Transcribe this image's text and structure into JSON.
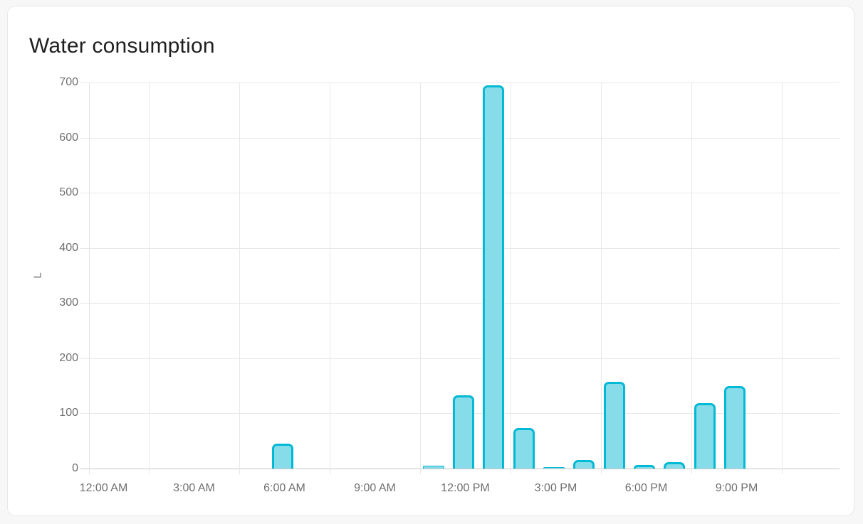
{
  "card": {
    "title": "Water consumption"
  },
  "chart_data": {
    "type": "bar",
    "title": "Water consumption",
    "xlabel": "",
    "ylabel": "L",
    "unit": "L",
    "ylim": [
      0,
      700
    ],
    "grid": true,
    "legend_position": "none",
    "yticks": [
      0,
      100,
      200,
      300,
      400,
      500,
      600,
      700
    ],
    "x_tick_labels": [
      "12:00 AM",
      "3:00 AM",
      "6:00 AM",
      "9:00 AM",
      "12:00 PM",
      "3:00 PM",
      "6:00 PM",
      "9:00 PM"
    ],
    "categories": [
      "12:00 AM",
      "1:00 AM",
      "2:00 AM",
      "3:00 AM",
      "4:00 AM",
      "5:00 AM",
      "6:00 AM",
      "7:00 AM",
      "8:00 AM",
      "9:00 AM",
      "10:00 AM",
      "11:00 AM",
      "12:00 PM",
      "1:00 PM",
      "2:00 PM",
      "3:00 PM",
      "4:00 PM",
      "5:00 PM",
      "6:00 PM",
      "7:00 PM",
      "8:00 PM",
      "9:00 PM",
      "10:00 PM",
      "11:00 PM"
    ],
    "values": [
      0,
      0,
      0,
      0,
      0,
      0,
      45,
      0,
      0,
      0,
      0,
      5,
      133,
      695,
      73,
      2,
      16,
      157,
      7,
      11,
      118,
      150,
      0,
      0
    ],
    "bar_fill_color": "#87dcea",
    "bar_border_color": "#00b9d4",
    "gridline_color": "#e8e8e8",
    "axis_line_color": "#c6c6c6",
    "tick_text_color": "#6f6f6f",
    "title_color": "#1f1f1f",
    "card_background": "#ffffff",
    "page_background": "#f7f7f7"
  }
}
